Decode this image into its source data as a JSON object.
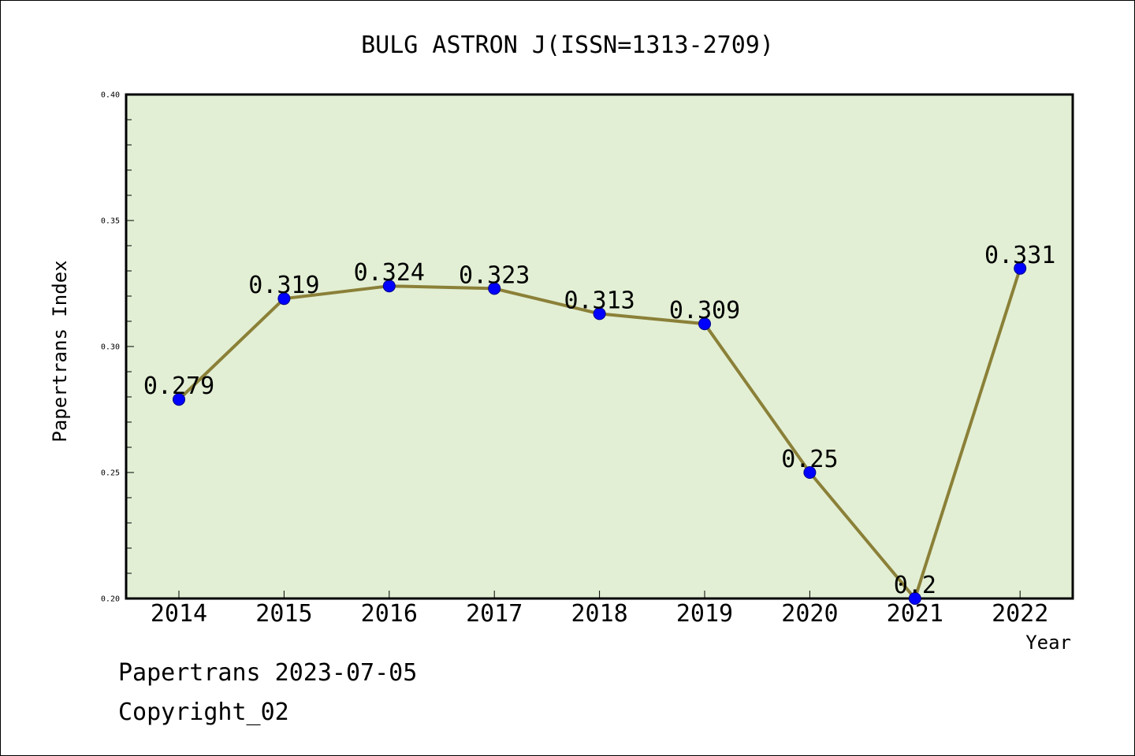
{
  "chart_data": {
    "type": "line",
    "title": "BULG ASTRON J(ISSN=1313-2709)",
    "xlabel": "Year",
    "ylabel": "Papertrans Index",
    "categories": [
      "2014",
      "2015",
      "2016",
      "2017",
      "2018",
      "2019",
      "2020",
      "2021",
      "2022"
    ],
    "values": [
      0.279,
      0.319,
      0.324,
      0.323,
      0.313,
      0.309,
      0.25,
      0.2,
      0.331
    ],
    "data_labels": [
      "0.279",
      "0.319",
      "0.324",
      "0.323",
      "0.313",
      "0.309",
      "0.25",
      "0.2",
      "0.331"
    ],
    "ylim": [
      0.2,
      0.4
    ],
    "yticks": [
      "0.20",
      "0.25",
      "0.30",
      "0.35",
      "0.40"
    ],
    "grid": false,
    "legend": "none",
    "colors": {
      "plot_background": "#e2efd4",
      "line": "#8b8038",
      "marker": "#0000ff",
      "marker_edge": "#00008b",
      "axis": "#000000"
    }
  },
  "footer": {
    "line1": "Papertrans 2023-07-05",
    "line2": "Copyright_02"
  }
}
